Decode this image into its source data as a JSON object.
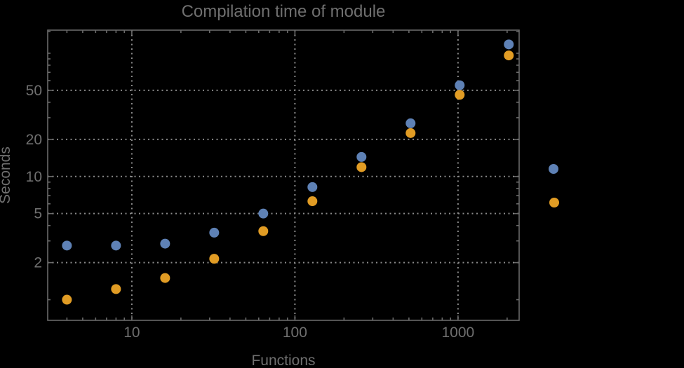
{
  "window": {
    "background_color": "#000000"
  },
  "chart_data": {
    "type": "scatter",
    "title": "Compilation time of module",
    "xlabel": "Functions",
    "ylabel": "Seconds",
    "x_scale": "log",
    "y_scale": "log",
    "xlim": [
      3.05,
      2370
    ],
    "ylim": [
      0.68,
      154
    ],
    "grid": {
      "style": "dotted",
      "x_at": [
        10,
        100,
        1000
      ],
      "y_at": [
        2,
        5,
        10,
        20,
        50
      ]
    },
    "x_major_ticks": [
      10,
      100,
      1000
    ],
    "x_tick_labels": [
      "10",
      "100",
      "1000"
    ],
    "x_minor_ticks": [
      4,
      5,
      6,
      7,
      8,
      9,
      20,
      30,
      40,
      50,
      60,
      70,
      80,
      90,
      200,
      300,
      400,
      500,
      600,
      700,
      800,
      900,
      2000
    ],
    "y_major_ticks": [
      2,
      5,
      10,
      20,
      50
    ],
    "y_tick_labels": [
      "2",
      "5",
      "10",
      "20",
      "50"
    ],
    "y_minor_ticks": [
      1,
      3,
      4,
      6,
      7,
      8,
      9,
      30,
      40,
      60,
      70,
      80,
      90,
      100,
      150
    ],
    "x": [
      4,
      8,
      16,
      32,
      64,
      128,
      256,
      512,
      1024,
      2048
    ],
    "series": [
      {
        "name": "series-blue",
        "color": "#5e81b5",
        "values": [
          2.75,
          2.75,
          2.85,
          3.5,
          5.0,
          8.2,
          14.4,
          27,
          55,
          118
        ]
      },
      {
        "name": "series-orange",
        "color": "#e19c24",
        "values": [
          1.0,
          1.22,
          1.5,
          2.15,
          3.6,
          6.3,
          11.9,
          22.5,
          46,
          96
        ]
      }
    ],
    "legend": {
      "position": "outside-right-middle",
      "entries": [
        {
          "series": "series-blue",
          "color": "#5e81b5",
          "label": ""
        },
        {
          "series": "series-orange",
          "color": "#e19c24",
          "label": ""
        }
      ]
    },
    "marker": {
      "shape": "circle",
      "radius": 7
    },
    "colors": {
      "frame": "#6a6a6a",
      "grid": "#8a8a8a",
      "text": "#6f6f6f"
    }
  }
}
